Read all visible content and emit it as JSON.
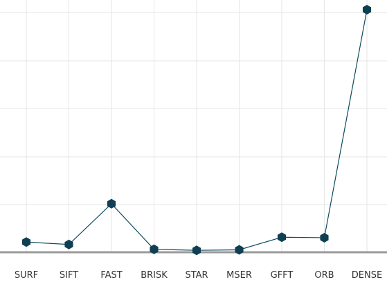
{
  "chart_data": {
    "type": "line",
    "categories": [
      "SURF",
      "SIFT",
      "FAST",
      "BRISK",
      "STAR",
      "MSER",
      "GFFT",
      "ORB",
      "DENSE"
    ],
    "series": [
      {
        "values": [
          2.1,
          1.6,
          10.0,
          0.6,
          0.4,
          0.5,
          3.1,
          3.0,
          50.0
        ]
      }
    ],
    "ylim": [
      0,
      52
    ],
    "grid": true,
    "legend": "none",
    "colors": {
      "line": "#0e4a5c",
      "marker": "#0e3f52",
      "axis": "#9a9a9a",
      "grid": "#e6e6e6"
    }
  }
}
